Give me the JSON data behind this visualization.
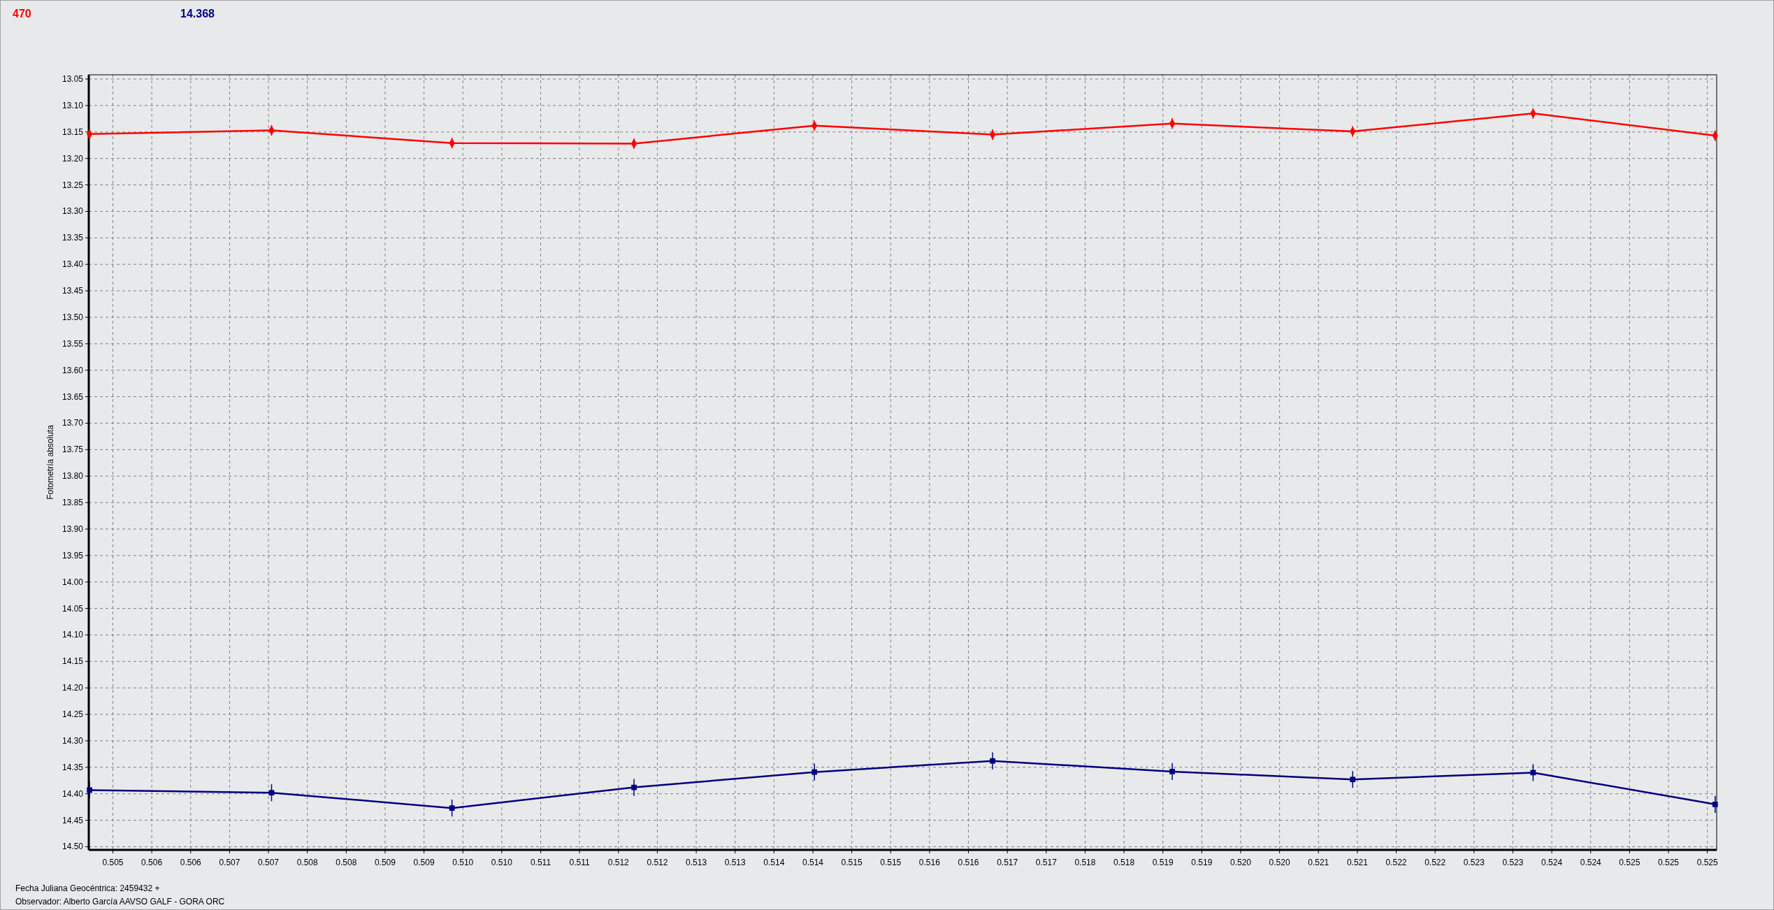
{
  "chart_data": {
    "type": "line",
    "ylabel": "Fotometría absoluta",
    "xlabel": "Fecha Juliana Geocéntrica: 2459432 +",
    "annotations": [
      "470",
      "14.368",
      "Observador: Alberto García AAVSO GALF - GORA ORC"
    ],
    "x": [
      0.5047,
      0.50704,
      0.50936,
      0.5117,
      0.51402,
      0.51631,
      0.51862,
      0.52094,
      0.52326,
      0.5256
    ],
    "series": [
      {
        "color": "#ff0000",
        "marker": "diamond",
        "values": [
          13.154,
          13.147,
          13.171,
          13.172,
          13.138,
          13.155,
          13.134,
          13.149,
          13.115,
          13.157
        ],
        "errors": [
          0.01,
          0.01,
          0.01,
          0.01,
          0.01,
          0.01,
          0.01,
          0.01,
          0.01,
          0.01
        ]
      },
      {
        "color": "#000080",
        "marker": "square",
        "values": [
          14.393,
          14.398,
          14.427,
          14.388,
          14.359,
          14.338,
          14.358,
          14.373,
          14.36,
          14.42
        ],
        "errors": [
          0.016,
          0.016,
          0.016,
          0.016,
          0.016,
          0.016,
          0.016,
          0.016,
          0.016,
          0.016
        ]
      }
    ],
    "xlim": [
      0.50469,
      0.52562
    ],
    "xticks": [
      {
        "value": 0.505,
        "label": "0.505"
      },
      {
        "value": 0.5055,
        "label": "0.506"
      },
      {
        "value": 0.506,
        "label": "0.506"
      },
      {
        "value": 0.5065,
        "label": "0.507"
      },
      {
        "value": 0.507,
        "label": "0.507"
      },
      {
        "value": 0.5075,
        "label": "0.508"
      },
      {
        "value": 0.508,
        "label": "0.508"
      },
      {
        "value": 0.5085,
        "label": "0.509"
      },
      {
        "value": 0.509,
        "label": "0.509"
      },
      {
        "value": 0.5095,
        "label": "0.510"
      },
      {
        "value": 0.51,
        "label": "0.510"
      },
      {
        "value": 0.5105,
        "label": "0.511"
      },
      {
        "value": 0.511,
        "label": "0.511"
      },
      {
        "value": 0.5115,
        "label": "0.512"
      },
      {
        "value": 0.512,
        "label": "0.512"
      },
      {
        "value": 0.5125,
        "label": "0.513"
      },
      {
        "value": 0.513,
        "label": "0.513"
      },
      {
        "value": 0.5135,
        "label": "0.514"
      },
      {
        "value": 0.514,
        "label": "0.514"
      },
      {
        "value": 0.5145,
        "label": "0.515"
      },
      {
        "value": 0.515,
        "label": "0.515"
      },
      {
        "value": 0.5155,
        "label": "0.516"
      },
      {
        "value": 0.516,
        "label": "0.516"
      },
      {
        "value": 0.5165,
        "label": "0.517"
      },
      {
        "value": 0.517,
        "label": "0.517"
      },
      {
        "value": 0.5175,
        "label": "0.518"
      },
      {
        "value": 0.518,
        "label": "0.518"
      },
      {
        "value": 0.5185,
        "label": "0.519"
      },
      {
        "value": 0.519,
        "label": "0.519"
      },
      {
        "value": 0.5195,
        "label": "0.520"
      },
      {
        "value": 0.52,
        "label": "0.520"
      },
      {
        "value": 0.5205,
        "label": "0.521"
      },
      {
        "value": 0.521,
        "label": "0.521"
      },
      {
        "value": 0.5215,
        "label": "0.522"
      },
      {
        "value": 0.522,
        "label": "0.522"
      },
      {
        "value": 0.5225,
        "label": "0.523"
      },
      {
        "value": 0.523,
        "label": "0.523"
      },
      {
        "value": 0.5235,
        "label": "0.524"
      },
      {
        "value": 0.524,
        "label": "0.524"
      },
      {
        "value": 0.5245,
        "label": "0.525"
      },
      {
        "value": 0.525,
        "label": "0.525"
      },
      {
        "value": 0.5255,
        "label": "0.525"
      }
    ],
    "ylim": [
      14.506,
      13.042
    ],
    "yticks": [
      13.05,
      {
        "value": 13.1,
        "label": "13.10"
      },
      13.15,
      {
        "value": 13.2,
        "label": "13.20"
      },
      13.25,
      {
        "value": 13.3,
        "label": "13.30"
      },
      13.35,
      {
        "value": 13.4,
        "label": "13.40"
      },
      13.45,
      {
        "value": 13.5,
        "label": "13.50"
      },
      13.55,
      {
        "value": 13.6,
        "label": "13.60"
      },
      13.65,
      {
        "value": 13.7,
        "label": "13.70"
      },
      13.75,
      {
        "value": 13.8,
        "label": "13.80"
      },
      13.85,
      {
        "value": 13.9,
        "label": "13.90"
      },
      13.95,
      {
        "value": 14,
        "label": "14.00"
      },
      14.05,
      {
        "value": 14.1,
        "label": "14.10"
      },
      14.15,
      {
        "value": 14.2,
        "label": "14.20"
      },
      14.25,
      {
        "value": 14.3,
        "label": "14.30"
      },
      14.35,
      {
        "value": 14.4,
        "label": "14.40"
      },
      14.45,
      {
        "value": 14.5,
        "label": "14.50"
      }
    ],
    "grid": true,
    "line_style": "solid"
  }
}
